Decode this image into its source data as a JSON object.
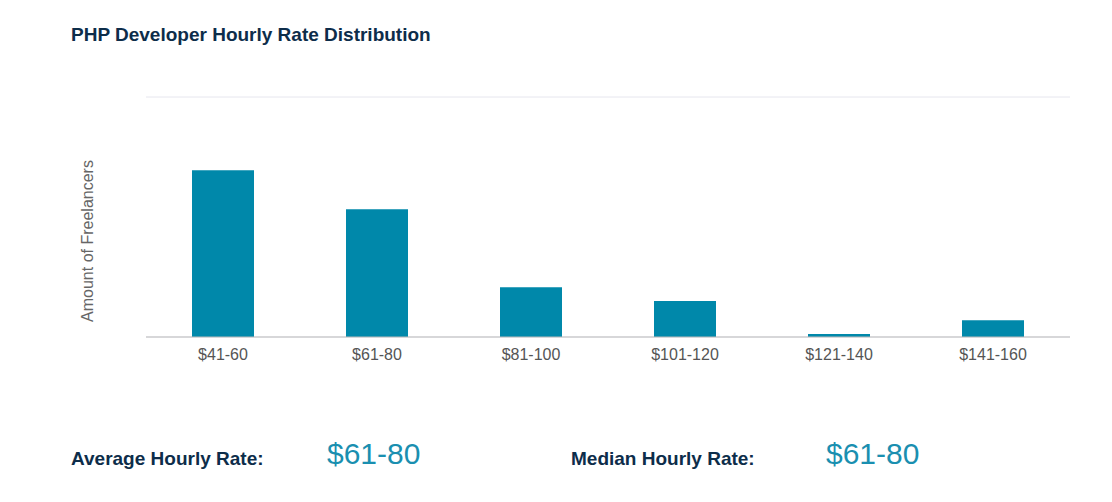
{
  "chart_data": {
    "type": "bar",
    "title": "PHP Developer Hourly Rate Distribution",
    "y_label": "Amount of Freelancers",
    "categories": [
      "$41-60",
      "$61-80",
      "$81-100",
      "$101-120",
      "$121-140",
      "$141-160"
    ],
    "values": [
      2.78,
      2.13,
      0.83,
      0.6,
      0.05,
      0.28
    ],
    "color": "#0088aa",
    "ylim": [
      0,
      4
    ],
    "yticks": [
      0,
      1,
      2,
      3,
      4
    ],
    "grid": true,
    "tick_labels": "x",
    "summary": [
      {
        "label": "Average Hourly Rate:",
        "value": "$61-80"
      },
      {
        "label": "Median Hourly Rate:",
        "value": "$61-80"
      }
    ]
  }
}
